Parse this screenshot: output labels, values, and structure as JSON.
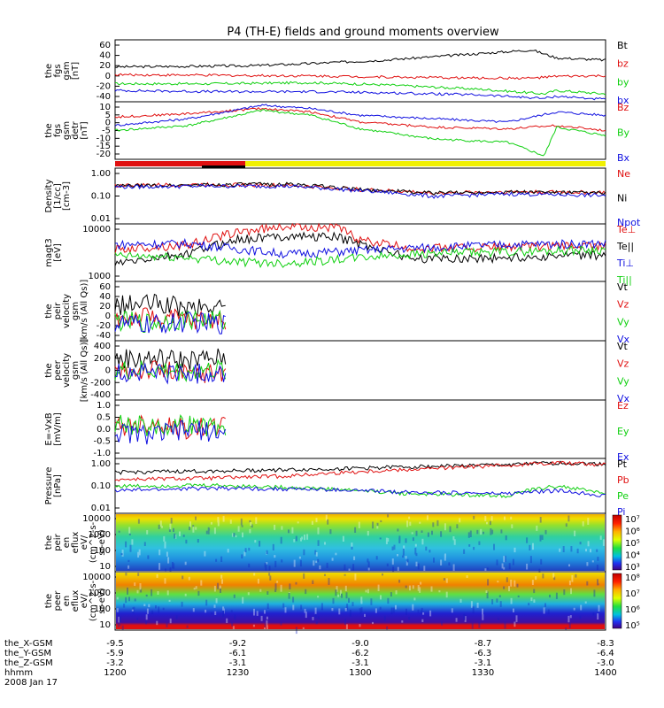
{
  "title": "P4 (TH-E) fields and ground moments overview",
  "colors": {
    "black": "#000000",
    "red": "#e01010",
    "green": "#10d010",
    "blue": "#1010e0",
    "yellow": "#f0f000"
  },
  "chart_data": [
    {
      "type": "line",
      "panel": "fgs_gsm",
      "ylabel_lines": [
        "the",
        "fgs",
        "gsm",
        "[nT]"
      ],
      "ylim": [
        -40,
        70
      ],
      "yticks": [
        "60",
        "40",
        "20",
        "0",
        "-20",
        "-40"
      ],
      "series": [
        {
          "name": "Bt",
          "color": "#000000",
          "x": [
            0,
            30,
            55,
            80,
            110,
            130,
            150,
            170,
            180,
            200
          ],
          "y": [
            22,
            23,
            24,
            28,
            34,
            40,
            46,
            52,
            38,
            34
          ]
        },
        {
          "name": "bz",
          "color": "#e01010",
          "x": [
            0,
            40,
            80,
            110,
            150,
            170,
            180,
            200
          ],
          "y": [
            8,
            7,
            6,
            4,
            2,
            2,
            5,
            6
          ]
        },
        {
          "name": "by",
          "color": "#10d010",
          "x": [
            0,
            40,
            80,
            110,
            150,
            175,
            180,
            200
          ],
          "y": [
            -8,
            -8,
            -6,
            -10,
            -18,
            -26,
            -20,
            -26
          ]
        },
        {
          "name": "bx",
          "color": "#1010e0",
          "x": [
            0,
            40,
            80,
            110,
            150,
            175,
            180,
            200
          ],
          "y": [
            -20,
            -22,
            -22,
            -24,
            -28,
            -34,
            -30,
            -36
          ]
        }
      ]
    },
    {
      "type": "line",
      "panel": "fgs_gsm_detrended",
      "ylabel_lines": [
        "the",
        "fgs",
        "gsm",
        "detr",
        "[nT]"
      ],
      "ylim": [
        -22,
        12
      ],
      "yticks": [
        "10",
        "5",
        "0",
        "-5",
        "-10",
        "-15",
        "-20"
      ],
      "series": [
        {
          "name": "Bz",
          "color": "#e01010",
          "x": [
            0,
            30,
            60,
            80,
            100,
            130,
            160,
            180,
            200
          ],
          "y": [
            3,
            5,
            8,
            6,
            0,
            -3,
            -4,
            -2,
            -5
          ]
        },
        {
          "name": "By",
          "color": "#10d010",
          "x": [
            0,
            30,
            60,
            80,
            100,
            130,
            160,
            175,
            180,
            200
          ],
          "y": [
            -5,
            -2,
            7,
            4,
            -4,
            -10,
            -12,
            -20,
            -3,
            -8
          ]
        },
        {
          "name": "Bx",
          "color": "#1010e0",
          "x": [
            0,
            30,
            60,
            80,
            100,
            130,
            160,
            180,
            200
          ],
          "y": [
            -2,
            2,
            10,
            8,
            4,
            2,
            0,
            6,
            4
          ]
        }
      ]
    },
    {
      "type": "line",
      "panel": "density",
      "scale": "log",
      "ylabel_lines": [
        "Density",
        "[1/cc]",
        "[cm-3]"
      ],
      "ylim": [
        0.01,
        1.5
      ],
      "yticks": [
        "1.00",
        "0.10",
        "0.01"
      ],
      "series": [
        {
          "name": "Ne",
          "color": "#e01010",
          "x": [
            0,
            40,
            70,
            100,
            130,
            160,
            200
          ],
          "y": [
            0.32,
            0.35,
            0.32,
            0.22,
            0.16,
            0.18,
            0.17
          ]
        },
        {
          "name": "Ni",
          "color": "#000000",
          "x": [
            0,
            40,
            70,
            100,
            130,
            160,
            200
          ],
          "y": [
            0.3,
            0.34,
            0.36,
            0.22,
            0.16,
            0.18,
            0.16
          ]
        },
        {
          "name": "Npot",
          "color": "#1010e0",
          "x": [
            0,
            40,
            70,
            100,
            130,
            160,
            200
          ],
          "y": [
            0.28,
            0.3,
            0.3,
            0.2,
            0.12,
            0.15,
            0.13
          ]
        }
      ]
    },
    {
      "type": "line",
      "panel": "temperature",
      "scale": "log",
      "ylabel_lines": [
        "magt3",
        "[eV]"
      ],
      "ylim": [
        1000,
        10000
      ],
      "yticks": [
        "10000",
        "1000"
      ],
      "series": [
        {
          "name": "Te⊥",
          "color": "#e01010",
          "x": [
            0,
            30,
            50,
            70,
            90,
            100,
            120,
            160,
            200
          ],
          "y": [
            3600,
            4300,
            7200,
            9200,
            8800,
            5200,
            3800,
            4000,
            4200
          ]
        },
        {
          "name": "Te||",
          "color": "#000000",
          "x": [
            0,
            30,
            50,
            70,
            90,
            100,
            120,
            160,
            200
          ],
          "y": [
            2000,
            3000,
            5400,
            6200,
            6000,
            4500,
            2500,
            2600,
            2900
          ]
        },
        {
          "name": "Ti⊥",
          "color": "#1010e0",
          "x": [
            0,
            30,
            50,
            70,
            90,
            120,
            160,
            200
          ],
          "y": [
            4400,
            4600,
            3700,
            3000,
            3300,
            3800,
            4400,
            4600
          ]
        },
        {
          "name": "Ti||",
          "color": "#10d010",
          "x": [
            0,
            30,
            50,
            70,
            90,
            120,
            160,
            200
          ],
          "y": [
            2800,
            2600,
            2200,
            2100,
            2400,
            3000,
            3300,
            3600
          ]
        }
      ]
    },
    {
      "type": "line",
      "panel": "peir_velocity",
      "ylabel_lines": [
        "the",
        "peir",
        "velocity",
        "gsm",
        "[km/s (All Qs)]"
      ],
      "ylim": [
        -40,
        80
      ],
      "yticks": [
        "60",
        "40",
        "20",
        "0",
        "-20",
        "-40"
      ],
      "series": [
        {
          "name": "Vt",
          "color": "#000000",
          "x": [
            0,
            15,
            30,
            45
          ],
          "y": [
            30,
            35,
            25,
            28
          ]
        },
        {
          "name": "Vz",
          "color": "#e01010",
          "x": [
            0,
            15,
            30,
            45
          ],
          "y": [
            5,
            8,
            0,
            4
          ]
        },
        {
          "name": "Vy",
          "color": "#10d010",
          "x": [
            0,
            15,
            30,
            45
          ],
          "y": [
            0,
            -5,
            4,
            0
          ]
        },
        {
          "name": "Vx",
          "color": "#1010e0",
          "x": [
            0,
            15,
            30,
            45
          ],
          "y": [
            -5,
            -8,
            -2,
            -6
          ]
        }
      ]
    },
    {
      "type": "line",
      "panel": "peer_velocity",
      "ylabel_lines": [
        "the",
        "peer",
        "velocity",
        "gsm",
        "[km/s (All Qs)]"
      ],
      "ylim": [
        -400,
        400
      ],
      "yticks": [
        "400",
        "200",
        "0",
        "-200",
        "-400"
      ],
      "series": [
        {
          "name": "Vt",
          "color": "#000000",
          "x": [
            0,
            15,
            30,
            45
          ],
          "y": [
            150,
            160,
            140,
            170
          ]
        },
        {
          "name": "Vz",
          "color": "#e01010",
          "x": [
            0,
            15,
            30,
            45
          ],
          "y": [
            -30,
            20,
            -60,
            -10
          ]
        },
        {
          "name": "Vy",
          "color": "#10d010",
          "x": [
            0,
            15,
            30,
            45
          ],
          "y": [
            -10,
            0,
            -20,
            10
          ]
        },
        {
          "name": "Vx",
          "color": "#1010e0",
          "x": [
            0,
            15,
            30,
            45
          ],
          "y": [
            -40,
            -20,
            -50,
            -30
          ]
        }
      ]
    },
    {
      "type": "line",
      "panel": "efield",
      "ylabel_lines": [
        "E=-VxB",
        "[mV/m]"
      ],
      "ylim": [
        -1,
        1.25
      ],
      "yticks": [
        "1.0",
        "0.5",
        "0.0",
        "-0.5",
        "-1.0"
      ],
      "series": [
        {
          "name": "Ez",
          "color": "#e01010",
          "x": [
            0,
            15,
            30,
            45
          ],
          "y": [
            0.2,
            0.4,
            0.1,
            0.3
          ]
        },
        {
          "name": "Ey",
          "color": "#10d010",
          "x": [
            0,
            15,
            30,
            45
          ],
          "y": [
            0.4,
            0.2,
            0.3,
            0.1
          ]
        },
        {
          "name": "Ex",
          "color": "#1010e0",
          "x": [
            0,
            15,
            30,
            45
          ],
          "y": [
            0.0,
            -0.1,
            0.1,
            0.0
          ]
        }
      ]
    },
    {
      "type": "line",
      "panel": "pressure",
      "scale": "log",
      "ylabel_lines": [
        "Pressure",
        "[nPa]"
      ],
      "ylim": [
        0.01,
        1.5
      ],
      "yticks": [
        "1.00",
        "0.10",
        "0.01"
      ],
      "series": [
        {
          "name": "Pt",
          "color": "#000000",
          "x": [
            0,
            40,
            80,
            120,
            160,
            180,
            200
          ],
          "y": [
            0.42,
            0.48,
            0.55,
            0.7,
            0.85,
            1.0,
            0.9
          ]
        },
        {
          "name": "Pb",
          "color": "#e01010",
          "x": [
            0,
            40,
            70,
            100,
            130,
            160,
            180,
            200
          ],
          "y": [
            0.22,
            0.25,
            0.3,
            0.45,
            0.6,
            0.8,
            1.05,
            0.85
          ]
        },
        {
          "name": "Pe",
          "color": "#10d010",
          "x": [
            0,
            40,
            80,
            120,
            160,
            180,
            200
          ],
          "y": [
            0.12,
            0.13,
            0.1,
            0.06,
            0.05,
            0.12,
            0.06
          ]
        },
        {
          "name": "Pi",
          "color": "#1010e0",
          "x": [
            0,
            40,
            80,
            120,
            160,
            180,
            200
          ],
          "y": [
            0.08,
            0.1,
            0.09,
            0.07,
            0.06,
            0.08,
            0.05
          ]
        }
      ]
    },
    {
      "type": "heatmap",
      "panel": "peir_eflux",
      "ylabel_lines": [
        "the",
        "peir",
        "en",
        "eflux",
        "eV/",
        "(cm^2-s-",
        "sr-eV)"
      ],
      "yticks": [
        "10000",
        "1000",
        "100",
        "10"
      ],
      "colorbar_ticks": [
        "10⁷",
        "10⁶",
        "10⁵",
        "10⁴",
        "10³"
      ]
    },
    {
      "type": "heatmap",
      "panel": "peer_eflux",
      "ylabel_lines": [
        "the",
        "peer",
        "en",
        "eflux",
        "eV/",
        "(cm^2-s-",
        "sr-eV)"
      ],
      "yticks": [
        "10000",
        "1000",
        "100",
        "10"
      ],
      "colorbar_ticks": [
        "10⁸",
        "10⁷",
        "10⁶",
        "10⁵"
      ]
    }
  ],
  "x_axis": {
    "rows": [
      {
        "label": "the_X-GSM",
        "values": [
          "-9.5",
          "-9.2",
          "-9.0",
          "-8.7",
          "-8.3"
        ]
      },
      {
        "label": "the_Y-GSM",
        "values": [
          "-5.9",
          "-6.1",
          "-6.2",
          "-6.3",
          "-6.4"
        ]
      },
      {
        "label": "the_Z-GSM",
        "values": [
          "-3.2",
          "-3.1",
          "-3.1",
          "-3.1",
          "-3.0"
        ]
      },
      {
        "label": "hhmm",
        "values": [
          "1200",
          "1230",
          "1300",
          "1330",
          "1400"
        ]
      }
    ],
    "date": "2008 Jan 17"
  }
}
